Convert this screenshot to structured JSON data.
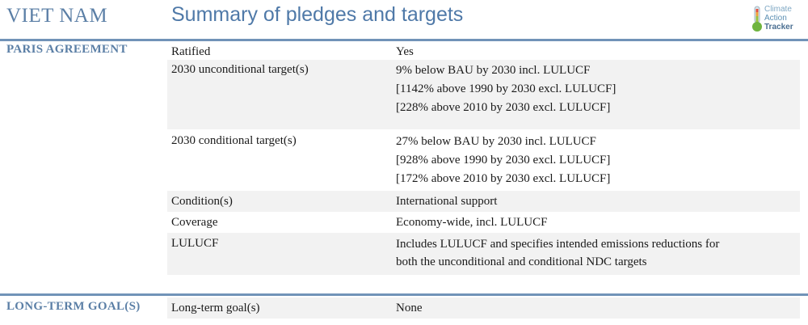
{
  "header": {
    "country": "VIET NAM",
    "title": "Summary of pledges and targets",
    "logo": {
      "line1": "Climate",
      "line2": "Action",
      "line3": "Tracker",
      "icon": "thermometer-icon"
    }
  },
  "colors": {
    "accent": "#5b7fa6",
    "rule": "#7193b8",
    "row_alt": "#f2f2f2"
  },
  "paris": {
    "label": "PARIS AGREEMENT",
    "rows": [
      {
        "key": "Ratified",
        "values": [
          "Yes"
        ]
      },
      {
        "key": "2030 unconditional target(s)",
        "values": [
          "9% below BAU by 2030 incl. LULUCF",
          "[1142% above 1990 by 2030 excl. LULUCF]",
          "[228% above 2010 by 2030 excl. LULUCF]"
        ]
      },
      {
        "key": "2030 conditional target(s)",
        "values": [
          "27% below BAU by 2030 incl. LULUCF",
          "[928% above 1990 by 2030 excl. LULUCF]",
          "[172% above 2010 by 2030 excl. LULUCF]"
        ]
      },
      {
        "key": "Condition(s)",
        "values": [
          "International support"
        ]
      },
      {
        "key": "Coverage",
        "values": [
          "Economy-wide, incl. LULUCF"
        ]
      },
      {
        "key": "LULUCF",
        "values": [
          "Includes LULUCF and specifies intended emissions reductions for",
          "both the unconditional and conditional NDC targets"
        ]
      }
    ]
  },
  "longterm": {
    "label": "LONG-TERM GOAL(S)",
    "rows": [
      {
        "key": "Long-term goal(s)",
        "values": [
          "None"
        ]
      }
    ]
  }
}
